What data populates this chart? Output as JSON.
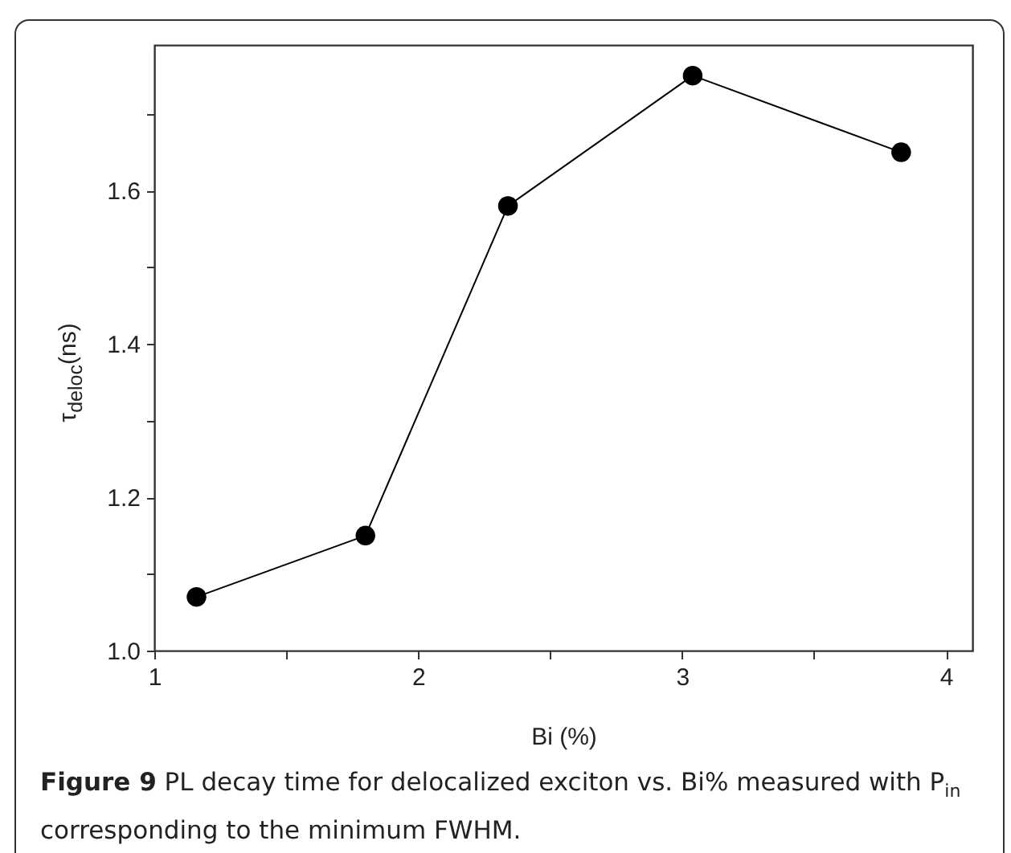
{
  "chart_data": {
    "type": "line",
    "xlabel": "Bi (%)",
    "ylabel": "τ$_{deloc}$(ns)",
    "annotations": [
      "Figure 9",
      "PL decay time for delocalized exciton vs. Bi% measured with P$_{in}$ corresponding to the minimum FWHM."
    ],
    "x": [
      1.16,
      1.8,
      2.34,
      3.04,
      3.83
    ],
    "series": [
      {
        "color": "#000000",
        "values": [
          1.07,
          1.15,
          1.58,
          1.75,
          1.65
        ]
      }
    ],
    "xlim": [
      1,
      4.1
    ],
    "xticks": [
      1,
      {
        "value": 1.5,
        "label": null
      },
      2,
      {
        "value": 2.5,
        "label": null
      },
      3,
      {
        "value": 3.5,
        "label": null
      },
      4
    ],
    "ylim": [
      1.0,
      1.79
    ],
    "yticks": [
      {
        "value": 1.0,
        "label": "1.0"
      },
      {
        "value": 1.1,
        "label": null
      },
      1.2,
      {
        "value": 1.3,
        "label": null
      },
      1.4,
      {
        "value": 1.5,
        "label": null
      },
      1.6,
      {
        "value": 1.7,
        "label": null
      }
    ],
    "marker": "circle",
    "line_style": "solid",
    "grid": false,
    "legend": false
  }
}
